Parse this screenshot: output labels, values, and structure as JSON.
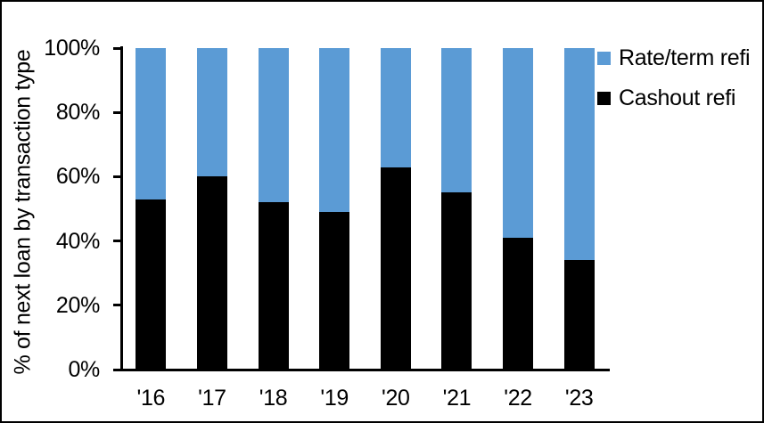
{
  "chart_data": {
    "type": "bar",
    "stacked": true,
    "percent_stacked": true,
    "title": "",
    "xlabel": "",
    "ylabel": "% of next loan by transaction type",
    "categories": [
      "'16",
      "'17",
      "'18",
      "'19",
      "'20",
      "'21",
      "'22",
      "'23"
    ],
    "series": [
      {
        "name": "Cashout refi",
        "color": "#000000",
        "values": [
          53,
          60,
          52,
          49,
          63,
          55,
          41,
          34
        ]
      },
      {
        "name": "Rate/term refi",
        "color": "#5B9BD5",
        "values": [
          47,
          40,
          48,
          51,
          37,
          45,
          59,
          66
        ]
      }
    ],
    "ylim": [
      0,
      100
    ],
    "yticks": [
      {
        "value": 0,
        "label": "0%"
      },
      {
        "value": 20,
        "label": "20%"
      },
      {
        "value": 40,
        "label": "40%"
      },
      {
        "value": 60,
        "label": "60%"
      },
      {
        "value": 80,
        "label": "80%"
      },
      {
        "value": 100,
        "label": "100%"
      }
    ],
    "grid": false,
    "legend_position": "top-right",
    "legend": [
      {
        "label": "Rate/term refi",
        "color": "#5B9BD5"
      },
      {
        "label": "Cashout refi",
        "color": "#000000"
      }
    ]
  },
  "colors": {
    "rate_term_blue": "#5B9BD5",
    "cashout_black": "#000000",
    "axis": "#000000",
    "background": "#ffffff",
    "frame_border": "#000000"
  }
}
